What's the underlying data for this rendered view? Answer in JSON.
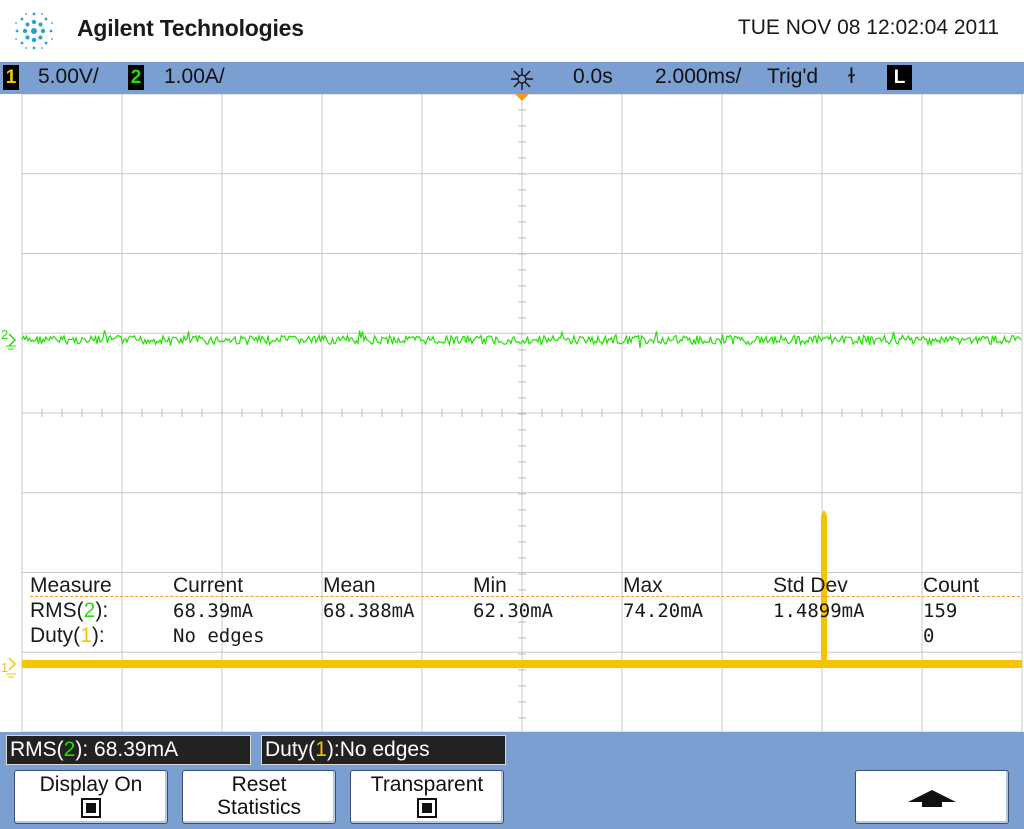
{
  "header": {
    "brand": "Agilent Technologies",
    "datetime": "TUE NOV 08 12:02:04 2011"
  },
  "status": {
    "ch1_number": "1",
    "ch1_scale": "5.00V/",
    "ch2_number": "2",
    "ch2_scale": "1.00A/",
    "delay": "0.0s",
    "timebase": "2.000ms/",
    "trigger_status": "Trig'd",
    "trigger_slope": "ɫ",
    "trigger_mode": "L"
  },
  "markers": {
    "ch2_label": "2",
    "ch1_label": "1"
  },
  "measurements": {
    "headers": [
      "Measure",
      "Current",
      "Mean",
      "Min",
      "Max",
      "Std Dev",
      "Count"
    ],
    "rows": [
      {
        "name": "RMS(",
        "channel": "2",
        "suffix": "):",
        "current": "68.39mA",
        "mean": "68.388mA",
        "min": "62.30mA",
        "max": "74.20mA",
        "stddev": "1.4899mA",
        "count": "159"
      },
      {
        "name": "Duty(",
        "channel": "1",
        "suffix": "):",
        "current": "No edges",
        "mean": "",
        "min": "",
        "max": "",
        "stddev": "",
        "count": "0"
      }
    ]
  },
  "readouts": {
    "rms_prefix": "RMS(",
    "rms_channel": "2",
    "rms_suffix": "): 68.39mA",
    "duty_prefix": "Duty(",
    "duty_channel": "1",
    "duty_suffix": "):No edges"
  },
  "softkeys": {
    "display_on": "Display On",
    "reset_line1": "Reset",
    "reset_line2": "Statistics",
    "transparent": "Transparent"
  },
  "colors": {
    "ch1": "#f5c400",
    "ch2": "#22e000",
    "bar": "#7a9fd0",
    "grid": "#c8c8c8",
    "trigger": "#f39a1e"
  }
}
